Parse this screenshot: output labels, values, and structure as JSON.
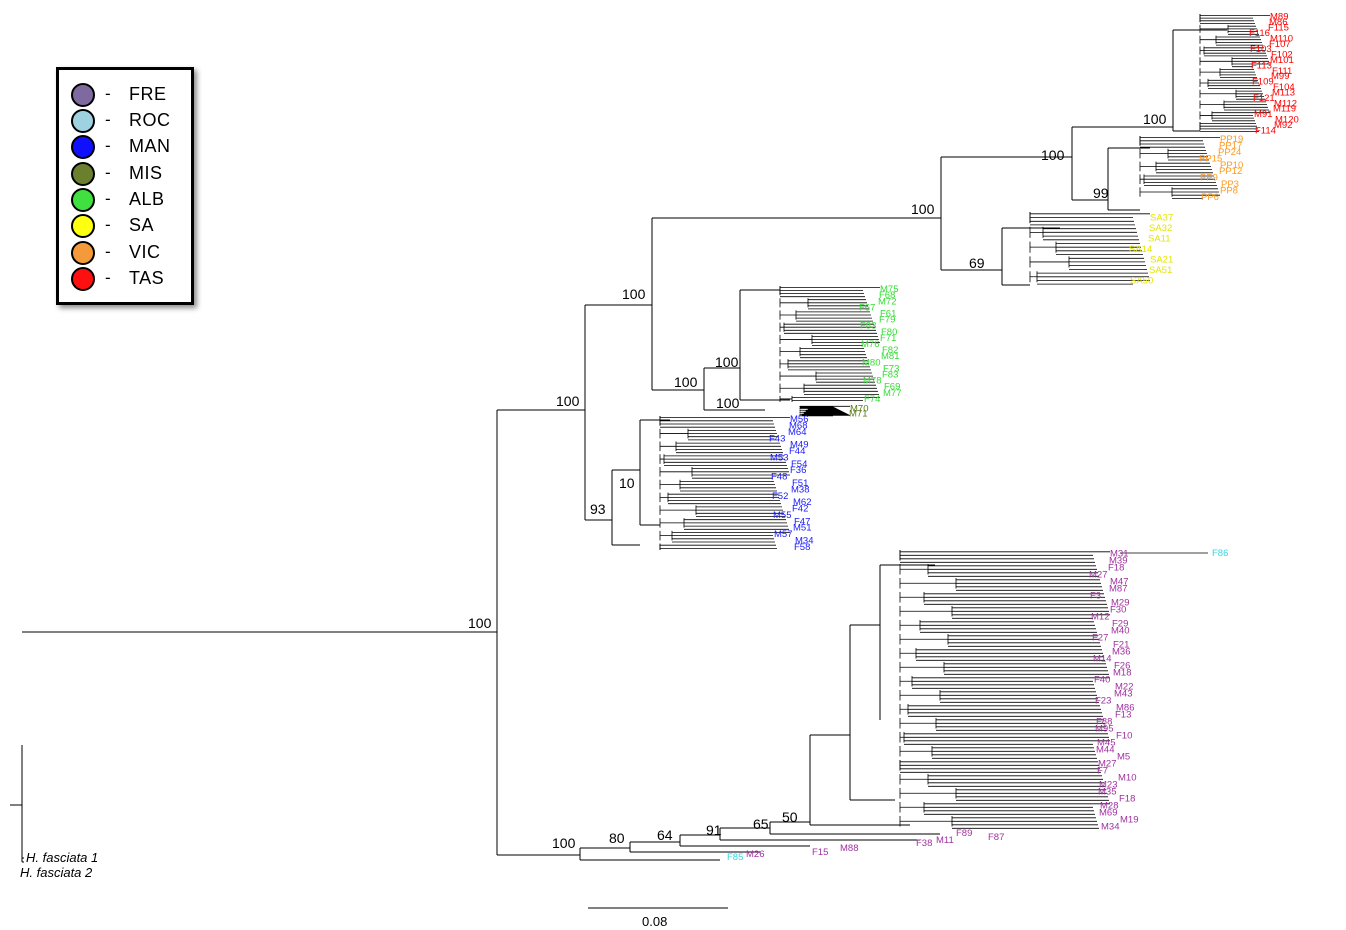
{
  "legend": {
    "items": [
      {
        "code": "FRE",
        "color": "#7e6a9e"
      },
      {
        "code": "ROC",
        "color": "#9fd2e0"
      },
      {
        "code": "MAN",
        "color": "#1010ff"
      },
      {
        "code": "MIS",
        "color": "#6b7f2f"
      },
      {
        "code": "ALB",
        "color": "#3fe03f"
      },
      {
        "code": "SA",
        "color": "#ffff10"
      },
      {
        "code": "VIC",
        "color": "#f59a3a"
      },
      {
        "code": "TAS",
        "color": "#ff1010"
      }
    ]
  },
  "tip_colors": {
    "TAS": "#ff0000",
    "VIC": "#ff9a20",
    "SA": "#e6e600",
    "ALB": "#33dd33",
    "MIS": "#5a7a1a",
    "MAN": "#1a1aff",
    "FRE": "#a030a0",
    "ROC": "#30d8e0"
  },
  "support_values": [
    "100",
    "100",
    "100",
    "99",
    "69",
    "100",
    "100",
    "100",
    "100",
    "100",
    "93",
    "10",
    "100",
    "100",
    "80",
    "64",
    "91",
    "65",
    "50"
  ],
  "outgroup": [
    "H. fasciata 1",
    "H. fasciata 2"
  ],
  "scale_bar": {
    "label": "0.08"
  },
  "tips": {
    "TAS": [
      "M89",
      "M86",
      "F115",
      "F116",
      "M110",
      "F107",
      "F103",
      "F102",
      "M101",
      "F113",
      "F111",
      "M99",
      "F109",
      "F104",
      "M113",
      "F121",
      "M112",
      "M119",
      "M91",
      "M120",
      "M92",
      "F114"
    ],
    "VIC": [
      "PP19",
      "PP17",
      "PP24",
      "PP15",
      "PP10",
      "PP12",
      "PP9",
      "PP3",
      "PP8",
      "PP6"
    ],
    "SA": [
      "SA37",
      "SA32",
      "SA11",
      "SA14",
      "SA21",
      "SA51",
      "SA50"
    ],
    "ALB": [
      "M75",
      "F68",
      "M72",
      "F67",
      "F61",
      "F79",
      "F83",
      "F80",
      "F71",
      "M76",
      "F82",
      "M81",
      "M80",
      "F73",
      "F83",
      "M78",
      "F69",
      "M77",
      "F74"
    ],
    "MIS": [
      "M70",
      "M71"
    ],
    "MAN": [
      "M56",
      "M68",
      "M64",
      "F43",
      "M49",
      "F44",
      "M53",
      "F54",
      "F36",
      "F48",
      "F51",
      "M38",
      "F52",
      "M62",
      "F42",
      "M55",
      "F47",
      "M51",
      "M57",
      "M34",
      "F58"
    ],
    "FRE": [
      "M31",
      "M39",
      "F18",
      "M27",
      "M47",
      "M87",
      "F3",
      "M29",
      "F30",
      "M12",
      "F29",
      "M40",
      "F27",
      "F21",
      "M36",
      "M14",
      "F26",
      "M18",
      "F40",
      "M22",
      "M43",
      "F23",
      "M86",
      "F13",
      "F88",
      "M95",
      "F10",
      "M45",
      "M44",
      "M5",
      "M27",
      "F7",
      "M10",
      "M23",
      "M35",
      "F18",
      "M28",
      "M69",
      "M19",
      "M34",
      "F89",
      "F87",
      "M11",
      "F38",
      "M88",
      "F15",
      "M26"
    ],
    "ROC": [
      "F86",
      "F85"
    ]
  }
}
